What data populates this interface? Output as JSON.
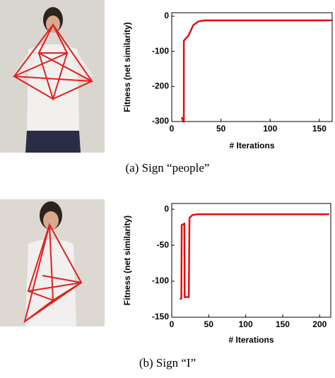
{
  "chart_data": [
    {
      "type": "line",
      "ylabel": "Fitness (net similarity)",
      "xlabel": "# Iterations",
      "caption": "(a) Sign “people”",
      "xlim": [
        0,
        163
      ],
      "ylim": [
        -300,
        10
      ],
      "xticks": [
        0,
        50,
        100,
        150
      ],
      "yticks": [
        -300,
        -200,
        -100,
        0
      ],
      "series": [
        {
          "color": "#e01010",
          "x": [
            10,
            11,
            11.5,
            12.3,
            12.3,
            17,
            19.5,
            22,
            27,
            33,
            163
          ],
          "values": [
            -288,
            -292,
            -300,
            -300,
            -70,
            -55,
            -40,
            -25,
            -15,
            -12,
            -12
          ]
        }
      ]
    },
    {
      "type": "line",
      "ylabel": "Fitness (net similarity)",
      "xlabel": "# Iterations",
      "caption": "(b) Sign “I”",
      "xlim": [
        0,
        215
      ],
      "ylim": [
        -150,
        8
      ],
      "xticks": [
        0,
        50,
        100,
        150,
        200
      ],
      "yticks": [
        -150,
        -100,
        -50,
        0
      ],
      "series": [
        {
          "color": "#e01010",
          "x": [
            11,
            13,
            13.5,
            17,
            17.5,
            23,
            24,
            28,
            35,
            213
          ],
          "values": [
            -125,
            -124,
            -22,
            -20,
            -122,
            -122,
            -12,
            -8,
            -7,
            -7
          ]
        }
      ]
    }
  ]
}
